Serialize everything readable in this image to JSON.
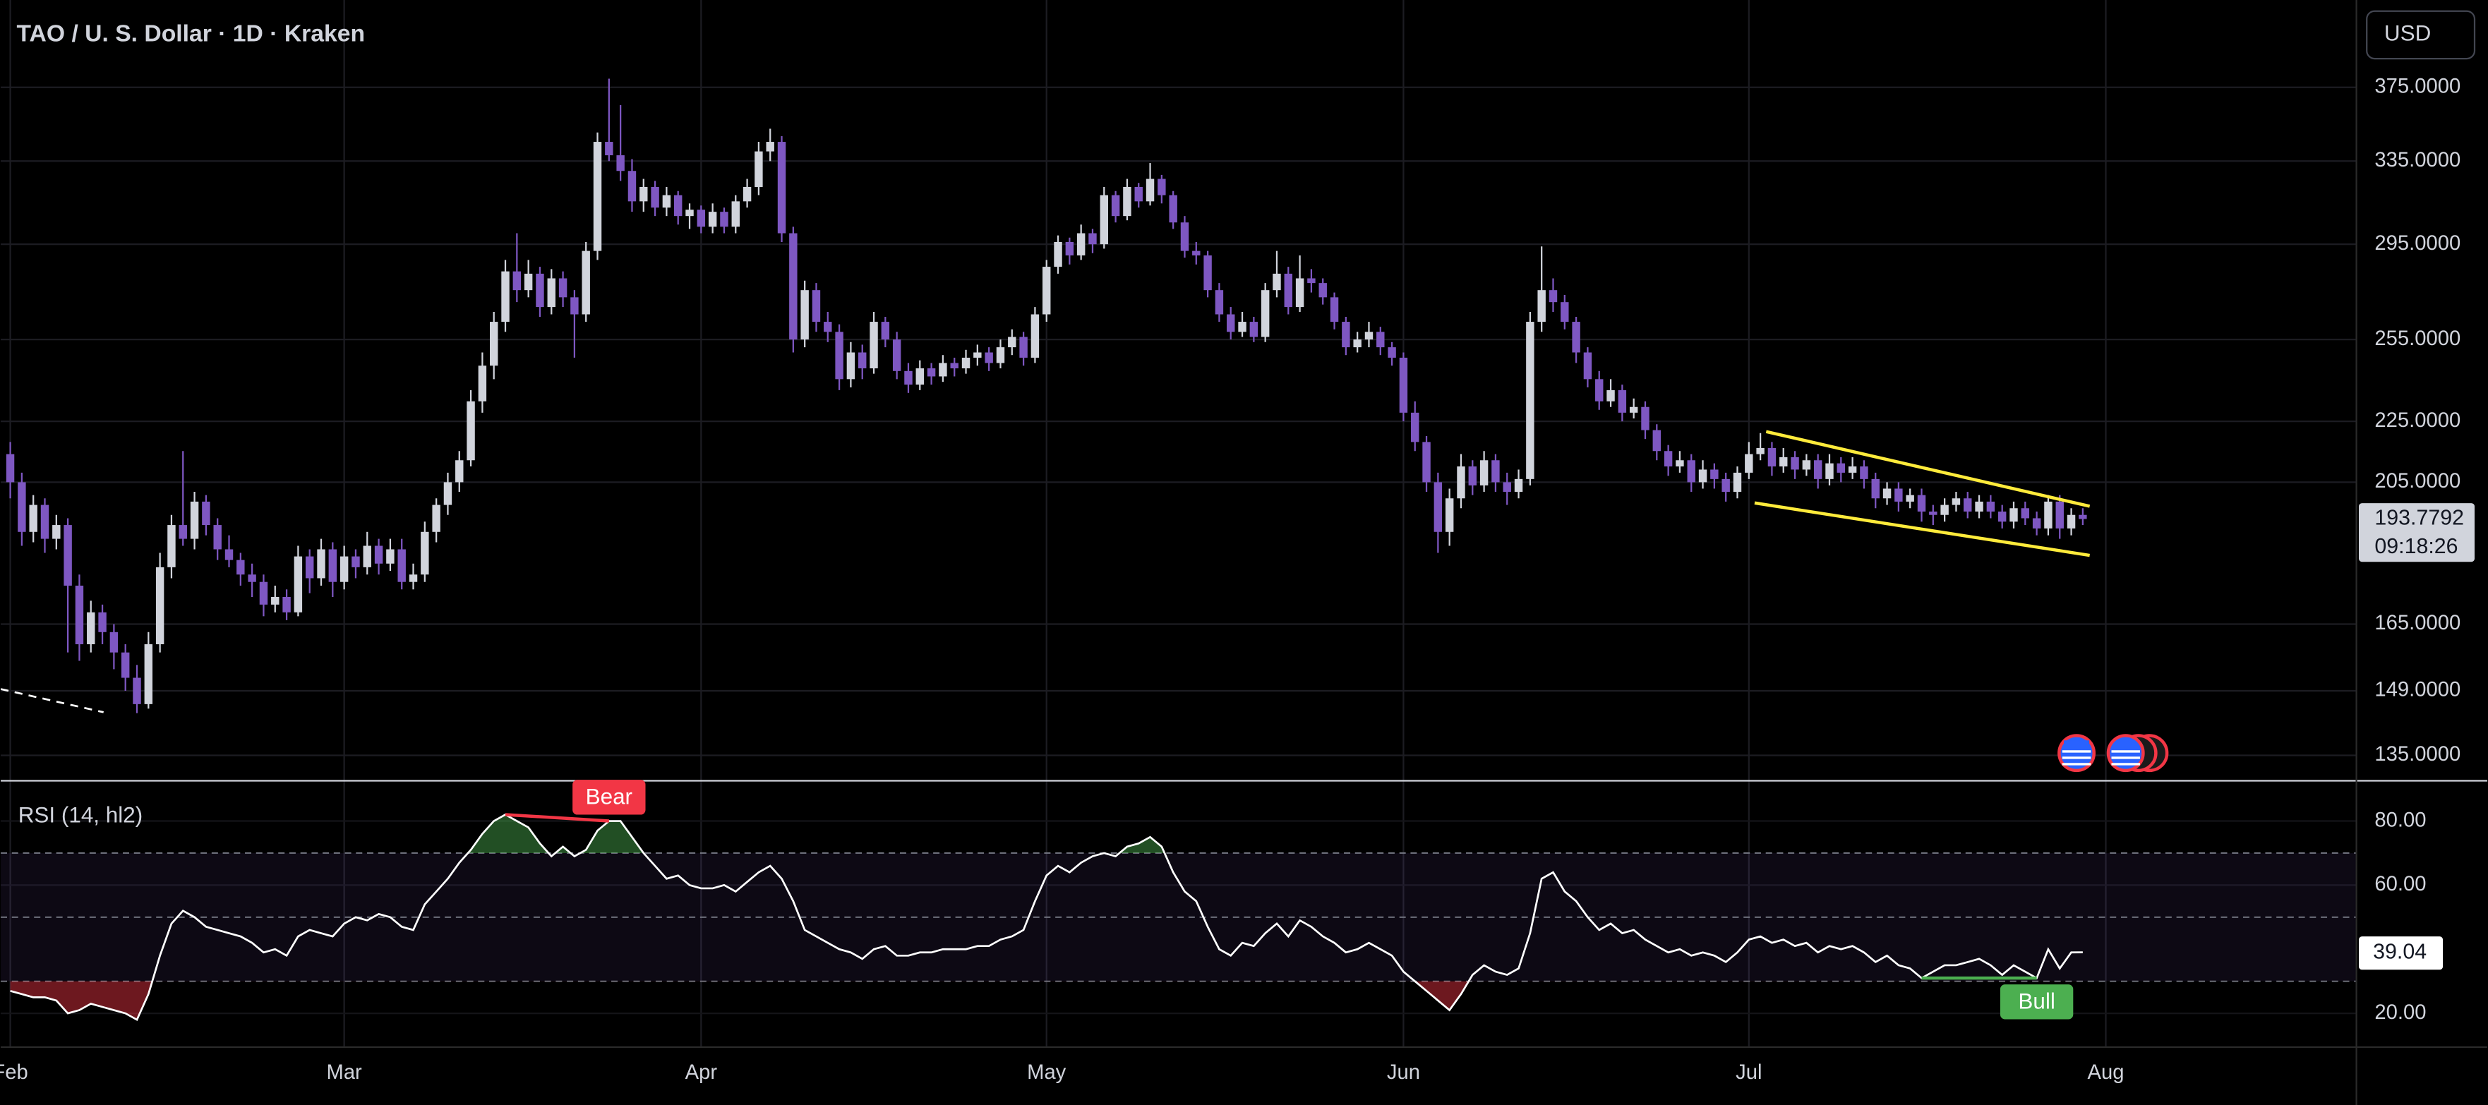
{
  "chart_data": [
    {
      "type": "candlestick",
      "title": "TAO / U. S. Dollar · 1D · Kraken",
      "currency": "USD",
      "countdown": "09:18:26",
      "up_color": "#d1d4dc",
      "down_color": "#7e57c2",
      "log_scale": true,
      "grid": true,
      "xlim": [
        -0.83,
        203.7
      ],
      "xticks": [
        {
          "value": 0,
          "label": "Feb"
        },
        {
          "value": 29,
          "label": "Mar"
        },
        {
          "value": 60,
          "label": "Apr"
        },
        {
          "value": 90,
          "label": "May"
        },
        {
          "value": 121,
          "label": "Jun"
        },
        {
          "value": 151,
          "label": "Jul"
        },
        {
          "value": 182,
          "label": "Aug"
        }
      ],
      "ylim": [
        130,
        428.6
      ],
      "yticks": [
        {
          "value": 375,
          "label": "375.0000"
        },
        {
          "value": 335,
          "label": "335.0000"
        },
        {
          "value": 295,
          "label": "295.0000"
        },
        {
          "value": 255,
          "label": "255.0000"
        },
        {
          "value": 225,
          "label": "225.0000"
        },
        {
          "value": 205,
          "label": "205.0000"
        },
        {
          "value": 165,
          "label": "165.0000"
        },
        {
          "value": 149,
          "label": "149.0000"
        },
        {
          "value": 135,
          "label": "135.0000"
        }
      ],
      "ohlc": [
        [
          214,
          218,
          200,
          205
        ],
        [
          205,
          208,
          186,
          190
        ],
        [
          190,
          201,
          187,
          198
        ],
        [
          198,
          200,
          184,
          188
        ],
        [
          188,
          195,
          185,
          192
        ],
        [
          192,
          194,
          158,
          175
        ],
        [
          175,
          178,
          156,
          160
        ],
        [
          160,
          171,
          158,
          168
        ],
        [
          168,
          170,
          160,
          163
        ],
        [
          163,
          165,
          154,
          158
        ],
        [
          158,
          160,
          149,
          152
        ],
        [
          152,
          155,
          144,
          146
        ],
        [
          146,
          163,
          145,
          160
        ],
        [
          160,
          184,
          158,
          180
        ],
        [
          180,
          195,
          177,
          192
        ],
        [
          192,
          215,
          186,
          188
        ],
        [
          188,
          202,
          185,
          199
        ],
        [
          199,
          201,
          189,
          192
        ],
        [
          192,
          194,
          182,
          185
        ],
        [
          185,
          189,
          180,
          182
        ],
        [
          182,
          184,
          175,
          178
        ],
        [
          178,
          181,
          172,
          176
        ],
        [
          176,
          178,
          167,
          170
        ],
        [
          170,
          175,
          168,
          172
        ],
        [
          172,
          174,
          166,
          168
        ],
        [
          168,
          186,
          167,
          183
        ],
        [
          183,
          185,
          173,
          177
        ],
        [
          177,
          188,
          175,
          185
        ],
        [
          185,
          187,
          172,
          176
        ],
        [
          176,
          186,
          174,
          183
        ],
        [
          183,
          185,
          177,
          180
        ],
        [
          180,
          190,
          178,
          186
        ],
        [
          186,
          188,
          178,
          181
        ],
        [
          181,
          188,
          179,
          185
        ],
        [
          185,
          188,
          174,
          176
        ],
        [
          176,
          181,
          174,
          178
        ],
        [
          178,
          193,
          176,
          190
        ],
        [
          190,
          200,
          187,
          198
        ],
        [
          198,
          208,
          195,
          205
        ],
        [
          205,
          215,
          202,
          212
        ],
        [
          212,
          236,
          210,
          232
        ],
        [
          232,
          250,
          228,
          245
        ],
        [
          245,
          266,
          240,
          262
        ],
        [
          262,
          288,
          258,
          283
        ],
        [
          283,
          300,
          270,
          275
        ],
        [
          275,
          288,
          272,
          282
        ],
        [
          282,
          285,
          264,
          268
        ],
        [
          268,
          284,
          265,
          280
        ],
        [
          280,
          283,
          268,
          272
        ],
        [
          272,
          275,
          248,
          265
        ],
        [
          265,
          296,
          262,
          292
        ],
        [
          292,
          350,
          288,
          345
        ],
        [
          345,
          380,
          335,
          338
        ],
        [
          338,
          365,
          325,
          330
        ],
        [
          330,
          336,
          310,
          315
        ],
        [
          315,
          326,
          310,
          322
        ],
        [
          322,
          325,
          308,
          312
        ],
        [
          312,
          322,
          308,
          318
        ],
        [
          318,
          320,
          304,
          308
        ],
        [
          308,
          314,
          302,
          311
        ],
        [
          311,
          313,
          300,
          303
        ],
        [
          303,
          314,
          300,
          310
        ],
        [
          310,
          312,
          300,
          303
        ],
        [
          303,
          318,
          300,
          315
        ],
        [
          315,
          326,
          312,
          322
        ],
        [
          322,
          345,
          318,
          340
        ],
        [
          340,
          352,
          335,
          345
        ],
        [
          345,
          348,
          296,
          300
        ],
        [
          300,
          303,
          250,
          255
        ],
        [
          255,
          279,
          252,
          275
        ],
        [
          275,
          278,
          258,
          262
        ],
        [
          262,
          266,
          254,
          258
        ],
        [
          258,
          261,
          236,
          240
        ],
        [
          240,
          254,
          237,
          250
        ],
        [
          250,
          253,
          240,
          244
        ],
        [
          244,
          266,
          242,
          262
        ],
        [
          262,
          264,
          252,
          255
        ],
        [
          255,
          258,
          240,
          243
        ],
        [
          243,
          246,
          235,
          238
        ],
        [
          238,
          247,
          236,
          244
        ],
        [
          244,
          246,
          238,
          241
        ],
        [
          241,
          249,
          239,
          246
        ],
        [
          246,
          248,
          241,
          244
        ],
        [
          244,
          251,
          242,
          248
        ],
        [
          248,
          253,
          245,
          250
        ],
        [
          250,
          252,
          243,
          246
        ],
        [
          246,
          255,
          244,
          252
        ],
        [
          252,
          259,
          249,
          256
        ],
        [
          256,
          258,
          245,
          248
        ],
        [
          248,
          268,
          246,
          265
        ],
        [
          265,
          288,
          262,
          285
        ],
        [
          285,
          299,
          282,
          296
        ],
        [
          296,
          298,
          286,
          290
        ],
        [
          290,
          304,
          288,
          300
        ],
        [
          300,
          302,
          291,
          295
        ],
        [
          295,
          322,
          293,
          318
        ],
        [
          318,
          320,
          305,
          308
        ],
        [
          308,
          326,
          306,
          322
        ],
        [
          322,
          324,
          312,
          315
        ],
        [
          315,
          334,
          313,
          326
        ],
        [
          326,
          328,
          314,
          318
        ],
        [
          318,
          320,
          302,
          305
        ],
        [
          305,
          308,
          289,
          292
        ],
        [
          292,
          296,
          286,
          290
        ],
        [
          290,
          292,
          272,
          275
        ],
        [
          275,
          278,
          262,
          265
        ],
        [
          265,
          268,
          255,
          258
        ],
        [
          258,
          266,
          256,
          262
        ],
        [
          262,
          264,
          254,
          256
        ],
        [
          256,
          278,
          254,
          275
        ],
        [
          275,
          292,
          272,
          282
        ],
        [
          282,
          285,
          265,
          268
        ],
        [
          268,
          290,
          266,
          280
        ],
        [
          280,
          284,
          274,
          278
        ],
        [
          278,
          280,
          269,
          272
        ],
        [
          272,
          274,
          259,
          262
        ],
        [
          262,
          264,
          249,
          252
        ],
        [
          252,
          258,
          250,
          255
        ],
        [
          255,
          262,
          252,
          258
        ],
        [
          258,
          260,
          249,
          252
        ],
        [
          252,
          254,
          245,
          248
        ],
        [
          248,
          250,
          225,
          228
        ],
        [
          228,
          232,
          215,
          218
        ],
        [
          218,
          220,
          202,
          205
        ],
        [
          205,
          208,
          184,
          190
        ],
        [
          190,
          203,
          186,
          200
        ],
        [
          200,
          214,
          197,
          210
        ],
        [
          210,
          212,
          201,
          204
        ],
        [
          204,
          215,
          202,
          212
        ],
        [
          212,
          214,
          202,
          205
        ],
        [
          205,
          208,
          198,
          202
        ],
        [
          202,
          209,
          200,
          206
        ],
        [
          206,
          266,
          204,
          262
        ],
        [
          262,
          294,
          258,
          275
        ],
        [
          275,
          280,
          266,
          270
        ],
        [
          270,
          273,
          259,
          262
        ],
        [
          262,
          264,
          246,
          250
        ],
        [
          250,
          252,
          237,
          240
        ],
        [
          240,
          243,
          229,
          232
        ],
        [
          232,
          240,
          230,
          236
        ],
        [
          236,
          238,
          225,
          228
        ],
        [
          228,
          233,
          226,
          230
        ],
        [
          230,
          232,
          219,
          222
        ],
        [
          222,
          224,
          212,
          215
        ],
        [
          215,
          217,
          207,
          210
        ],
        [
          210,
          215,
          208,
          212
        ],
        [
          212,
          214,
          202,
          205
        ],
        [
          205,
          212,
          203,
          209
        ],
        [
          209,
          211,
          203,
          206
        ],
        [
          206,
          208,
          199,
          202
        ],
        [
          202,
          210,
          200,
          208
        ],
        [
          208,
          218,
          206,
          214
        ],
        [
          214,
          221,
          212,
          216
        ],
        [
          216,
          218,
          207,
          210
        ],
        [
          210,
          216,
          208,
          213
        ],
        [
          213,
          215,
          206,
          209
        ],
        [
          209,
          214,
          207,
          212
        ],
        [
          212,
          214,
          203,
          206
        ],
        [
          206,
          214,
          204,
          211
        ],
        [
          211,
          213,
          205,
          208
        ],
        [
          208,
          213,
          206,
          210
        ],
        [
          210,
          212,
          203,
          206
        ],
        [
          206,
          208,
          197,
          200
        ],
        [
          200,
          205,
          198,
          203
        ],
        [
          203,
          205,
          196,
          199
        ],
        [
          199,
          203,
          197,
          201
        ],
        [
          201,
          203,
          193,
          196
        ],
        [
          196,
          198,
          192,
          195
        ],
        [
          195,
          200,
          193,
          198
        ],
        [
          198,
          202,
          196,
          200
        ],
        [
          200,
          202,
          194,
          196
        ],
        [
          196,
          201,
          194,
          199
        ],
        [
          199,
          201,
          194,
          196
        ],
        [
          196,
          198,
          191,
          193
        ],
        [
          193,
          199,
          191,
          197
        ],
        [
          197,
          199,
          192,
          194
        ],
        [
          194,
          196,
          189,
          191
        ],
        [
          191,
          201,
          189,
          199
        ],
        [
          199,
          201,
          188,
          191
        ],
        [
          191,
          197,
          189,
          195
        ],
        [
          195,
          197,
          192,
          193.7792
        ]
      ],
      "drawings": [
        {
          "x": [
            152.5,
            180.6
          ],
          "y": [
            221.5,
            197.6
          ],
          "color": "#ffeb3b"
        },
        {
          "x": [
            151.5,
            180.6
          ],
          "y": [
            198.6,
            183.3
          ],
          "color": "#ffeb3b"
        },
        {
          "x": [
            -0.83,
            8.1
          ],
          "y": [
            149.4,
            144.2
          ],
          "color": "#ffffff",
          "dashed": true
        }
      ]
    },
    {
      "type": "line",
      "title": "RSI (14, hl2)",
      "color": "#ffffff",
      "ylim": [
        9.7,
        92.3
      ],
      "yticks": [
        {
          "value": 80,
          "label": "80.00"
        },
        {
          "value": 60,
          "label": "60.00"
        },
        {
          "value": 20,
          "label": "20.00"
        }
      ],
      "bands": [
        70,
        50,
        30
      ],
      "values": [
        27,
        26,
        25,
        25,
        24,
        20,
        21,
        23,
        22,
        21,
        20,
        18,
        26,
        38,
        48,
        52,
        50,
        47,
        46,
        45,
        44,
        42,
        39,
        40,
        38,
        44,
        46,
        45,
        44,
        48,
        50,
        49,
        51,
        50,
        47,
        46,
        54,
        58,
        62,
        67,
        71,
        76,
        80,
        82,
        80,
        78,
        73,
        69,
        72,
        69,
        71,
        77,
        80,
        80,
        75,
        70,
        66,
        62,
        63,
        60,
        59,
        59,
        60,
        58,
        61,
        64,
        66,
        62,
        55,
        46,
        44,
        42,
        40,
        39,
        37,
        40,
        41,
        38,
        38,
        39,
        39,
        40,
        40,
        40,
        41,
        41,
        43,
        44,
        46,
        55,
        63,
        66,
        64,
        67,
        69,
        70,
        69,
        72,
        73,
        75,
        72,
        64,
        58,
        55,
        47,
        40,
        38,
        42,
        41,
        45,
        48,
        44,
        49,
        47,
        44,
        42,
        39,
        40,
        42,
        40,
        38,
        33,
        30,
        27,
        24,
        21,
        26,
        32,
        35,
        33,
        32,
        34,
        45,
        62,
        64,
        58,
        55,
        50,
        46,
        48,
        45,
        46,
        43,
        41,
        39,
        40,
        38,
        39,
        38,
        36,
        39,
        43,
        44,
        42,
        43,
        41,
        42,
        39,
        41,
        40,
        41,
        39,
        36,
        38,
        35,
        34,
        31,
        33,
        35,
        35,
        36,
        37,
        35,
        32,
        35,
        33,
        31,
        40,
        34,
        39,
        39.04
      ],
      "divergences": [
        {
          "label": "Bear",
          "start": 43,
          "end": 52,
          "color": "#f23645"
        },
        {
          "label": "Bull",
          "start": 166,
          "end": 176,
          "color": "#4caf50"
        }
      ]
    }
  ]
}
